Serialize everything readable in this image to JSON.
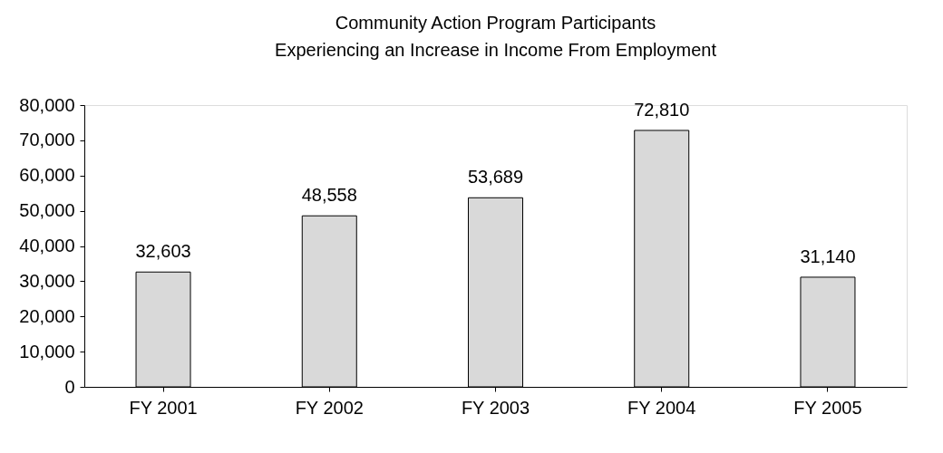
{
  "chart_data": {
    "type": "bar",
    "title": "Community Action Program Participants Experiencing an Increase in Income From Employment",
    "categories": [
      "FY 2001",
      "FY 2002",
      "FY 2003",
      "FY 2004",
      "FY 2005"
    ],
    "values": [
      32603,
      48558,
      53689,
      72810,
      31140
    ],
    "value_labels": [
      "32,603",
      "48,558",
      "53,689",
      "72,810",
      "31,140"
    ],
    "color": "#d9d9d9",
    "ylim": [
      0,
      80000
    ],
    "yticks": [
      0,
      {
        "value": 10000,
        "label": "10,000"
      },
      {
        "value": 20000,
        "label": "20,000"
      },
      {
        "value": 30000,
        "label": "30,000"
      },
      {
        "value": 40000,
        "label": "40,000"
      },
      {
        "value": 50000,
        "label": "50,000"
      },
      {
        "value": 60000,
        "label": "60,000"
      },
      {
        "value": 70000,
        "label": "70,000"
      },
      {
        "value": 80000,
        "label": "80,000"
      }
    ],
    "grid": false
  }
}
